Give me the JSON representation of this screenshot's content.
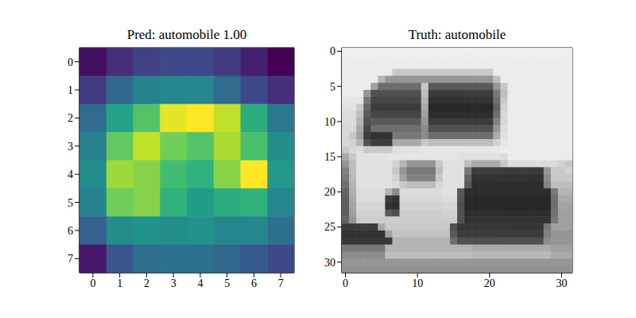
{
  "chart_data": [
    {
      "type": "heatmap",
      "title": "Pred: automobile 1.00",
      "xlim": [
        -0.5,
        7.5
      ],
      "ylim": [
        -0.5,
        7.5
      ],
      "xticks": [
        0,
        1,
        2,
        3,
        4,
        5,
        6,
        7
      ],
      "yticks": [
        0,
        1,
        2,
        3,
        4,
        5,
        6,
        7
      ],
      "cells": [
        [
          0.05,
          0.15,
          0.22,
          0.25,
          0.25,
          0.2,
          0.1,
          0.0
        ],
        [
          0.2,
          0.38,
          0.5,
          0.52,
          0.52,
          0.4,
          0.25,
          0.15
        ],
        [
          0.4,
          0.65,
          0.82,
          0.98,
          1.0,
          0.95,
          0.7,
          0.45
        ],
        [
          0.5,
          0.85,
          0.95,
          0.88,
          0.82,
          0.93,
          0.8,
          0.55
        ],
        [
          0.55,
          0.92,
          0.9,
          0.78,
          0.72,
          0.9,
          1.0,
          0.6
        ],
        [
          0.5,
          0.88,
          0.9,
          0.72,
          0.62,
          0.7,
          0.72,
          0.52
        ],
        [
          0.35,
          0.55,
          0.58,
          0.55,
          0.58,
          0.52,
          0.52,
          0.42
        ],
        [
          0.08,
          0.3,
          0.4,
          0.42,
          0.42,
          0.38,
          0.32,
          0.25
        ]
      ]
    },
    {
      "type": "image",
      "title": "Truth: automobile",
      "xlim": [
        -0.5,
        31.5
      ],
      "ylim": [
        -0.5,
        31.5
      ],
      "xticks": [
        0,
        10,
        20,
        30
      ],
      "yticks": [
        0,
        5,
        10,
        15,
        20,
        25,
        30
      ],
      "pixels": [
        [
          238,
          238,
          238,
          238,
          238,
          238,
          238,
          238,
          238,
          238,
          238,
          238,
          238,
          238,
          238,
          238,
          238,
          238,
          238,
          238,
          238,
          238,
          238,
          238,
          238,
          238,
          238,
          238,
          238,
          238,
          238,
          238
        ],
        [
          238,
          238,
          238,
          238,
          238,
          238,
          238,
          238,
          238,
          238,
          238,
          238,
          238,
          238,
          238,
          238,
          238,
          238,
          238,
          238,
          238,
          238,
          238,
          238,
          238,
          238,
          238,
          238,
          238,
          238,
          238,
          238
        ],
        [
          236,
          236,
          236,
          236,
          236,
          236,
          236,
          236,
          236,
          236,
          236,
          236,
          236,
          236,
          236,
          236,
          236,
          236,
          236,
          236,
          236,
          236,
          236,
          236,
          236,
          236,
          236,
          236,
          236,
          236,
          236,
          236
        ],
        [
          236,
          236,
          236,
          236,
          236,
          236,
          236,
          200,
          200,
          200,
          200,
          200,
          200,
          200,
          200,
          200,
          200,
          200,
          200,
          200,
          200,
          236,
          236,
          236,
          236,
          236,
          236,
          236,
          236,
          236,
          236,
          236
        ],
        [
          236,
          236,
          236,
          236,
          236,
          180,
          150,
          150,
          150,
          150,
          150,
          150,
          150,
          150,
          150,
          150,
          150,
          150,
          150,
          150,
          150,
          190,
          236,
          236,
          236,
          236,
          236,
          236,
          236,
          236,
          236,
          236
        ],
        [
          236,
          236,
          236,
          236,
          160,
          110,
          110,
          110,
          110,
          110,
          110,
          200,
          90,
          90,
          90,
          90,
          90,
          90,
          90,
          90,
          90,
          150,
          200,
          236,
          236,
          236,
          236,
          236,
          236,
          236,
          236,
          236
        ],
        [
          236,
          236,
          236,
          150,
          80,
          80,
          80,
          80,
          80,
          80,
          80,
          190,
          60,
          60,
          60,
          60,
          60,
          60,
          60,
          60,
          60,
          120,
          190,
          236,
          236,
          236,
          236,
          236,
          236,
          236,
          236,
          236
        ],
        [
          230,
          230,
          230,
          120,
          70,
          70,
          70,
          70,
          70,
          70,
          70,
          180,
          50,
          50,
          50,
          50,
          50,
          50,
          50,
          50,
          50,
          110,
          200,
          236,
          236,
          236,
          236,
          236,
          236,
          236,
          236,
          236
        ],
        [
          225,
          225,
          200,
          100,
          60,
          60,
          60,
          60,
          60,
          60,
          60,
          170,
          40,
          40,
          40,
          40,
          40,
          40,
          40,
          40,
          40,
          100,
          210,
          236,
          236,
          236,
          236,
          236,
          236,
          236,
          236,
          236
        ],
        [
          220,
          220,
          190,
          90,
          70,
          70,
          70,
          70,
          70,
          70,
          70,
          160,
          45,
          45,
          45,
          45,
          45,
          45,
          45,
          45,
          45,
          110,
          215,
          236,
          236,
          236,
          236,
          236,
          236,
          236,
          236,
          236
        ],
        [
          220,
          220,
          180,
          80,
          90,
          90,
          90,
          90,
          90,
          90,
          90,
          150,
          60,
          60,
          60,
          60,
          60,
          60,
          60,
          60,
          60,
          130,
          215,
          236,
          236,
          236,
          236,
          236,
          236,
          236,
          236,
          236
        ],
        [
          215,
          215,
          170,
          70,
          110,
          110,
          110,
          110,
          110,
          110,
          110,
          140,
          80,
          80,
          80,
          80,
          80,
          80,
          80,
          80,
          80,
          150,
          220,
          236,
          236,
          236,
          236,
          236,
          236,
          236,
          236,
          236
        ],
        [
          215,
          200,
          160,
          60,
          50,
          50,
          50,
          120,
          120,
          120,
          120,
          140,
          110,
          110,
          110,
          110,
          110,
          110,
          110,
          110,
          110,
          170,
          225,
          236,
          236,
          236,
          236,
          236,
          236,
          236,
          236,
          236
        ],
        [
          215,
          210,
          180,
          80,
          60,
          60,
          60,
          170,
          170,
          170,
          170,
          200,
          190,
          190,
          190,
          190,
          190,
          190,
          190,
          190,
          190,
          210,
          230,
          236,
          236,
          236,
          236,
          236,
          236,
          236,
          236,
          236
        ],
        [
          200,
          215,
          220,
          200,
          200,
          200,
          200,
          225,
          225,
          225,
          225,
          230,
          230,
          230,
          230,
          230,
          230,
          230,
          230,
          230,
          230,
          232,
          236,
          236,
          236,
          236,
          236,
          236,
          236,
          236,
          236,
          236
        ],
        [
          170,
          200,
          225,
          225,
          225,
          225,
          230,
          230,
          230,
          230,
          230,
          230,
          230,
          230,
          230,
          230,
          225,
          225,
          225,
          225,
          225,
          225,
          220,
          236,
          236,
          236,
          236,
          236,
          236,
          236,
          236,
          236
        ],
        [
          150,
          190,
          225,
          225,
          225,
          225,
          225,
          210,
          180,
          150,
          150,
          150,
          150,
          200,
          225,
          225,
          225,
          190,
          170,
          170,
          170,
          170,
          200,
          220,
          220,
          220,
          220,
          220,
          220,
          220,
          210,
          200
        ],
        [
          130,
          190,
          225,
          225,
          225,
          225,
          225,
          200,
          150,
          120,
          120,
          120,
          120,
          190,
          225,
          225,
          225,
          120,
          60,
          60,
          60,
          60,
          60,
          60,
          60,
          60,
          60,
          60,
          150,
          200,
          200,
          210
        ],
        [
          120,
          185,
          225,
          225,
          225,
          225,
          225,
          210,
          160,
          130,
          130,
          130,
          130,
          200,
          225,
          225,
          225,
          100,
          50,
          50,
          50,
          50,
          50,
          50,
          50,
          50,
          50,
          50,
          140,
          200,
          200,
          200
        ],
        [
          110,
          180,
          225,
          225,
          225,
          225,
          225,
          220,
          200,
          190,
          190,
          190,
          190,
          215,
          225,
          225,
          225,
          90,
          45,
          45,
          45,
          45,
          45,
          45,
          45,
          45,
          45,
          45,
          130,
          190,
          190,
          190
        ],
        [
          100,
          175,
          220,
          220,
          220,
          220,
          180,
          140,
          220,
          220,
          220,
          220,
          220,
          220,
          225,
          225,
          90,
          45,
          45,
          45,
          45,
          45,
          45,
          45,
          45,
          45,
          45,
          45,
          45,
          120,
          180,
          180
        ],
        [
          95,
          170,
          220,
          220,
          220,
          220,
          60,
          50,
          215,
          215,
          215,
          215,
          215,
          215,
          220,
          220,
          85,
          40,
          40,
          40,
          40,
          40,
          40,
          40,
          40,
          40,
          40,
          40,
          40,
          110,
          170,
          170
        ],
        [
          95,
          165,
          215,
          215,
          215,
          215,
          50,
          45,
          210,
          210,
          210,
          210,
          210,
          210,
          215,
          215,
          80,
          40,
          40,
          40,
          40,
          40,
          40,
          40,
          40,
          40,
          40,
          40,
          40,
          110,
          165,
          165
        ],
        [
          95,
          160,
          210,
          210,
          210,
          210,
          90,
          80,
          205,
          205,
          205,
          205,
          205,
          205,
          210,
          210,
          80,
          45,
          45,
          45,
          45,
          45,
          45,
          45,
          45,
          45,
          45,
          45,
          45,
          115,
          160,
          160
        ],
        [
          100,
          150,
          205,
          205,
          205,
          205,
          205,
          205,
          205,
          205,
          205,
          205,
          205,
          205,
          205,
          205,
          80,
          50,
          50,
          50,
          50,
          50,
          50,
          50,
          50,
          50,
          50,
          50,
          50,
          120,
          160,
          160
        ],
        [
          60,
          60,
          60,
          60,
          60,
          170,
          200,
          200,
          200,
          200,
          200,
          200,
          200,
          200,
          200,
          80,
          55,
          55,
          55,
          55,
          55,
          55,
          55,
          55,
          55,
          55,
          55,
          55,
          120,
          160,
          160,
          160
        ],
        [
          50,
          50,
          50,
          50,
          50,
          50,
          160,
          195,
          195,
          195,
          195,
          195,
          195,
          195,
          195,
          90,
          60,
          60,
          60,
          60,
          60,
          60,
          60,
          60,
          60,
          60,
          60,
          60,
          130,
          150,
          150,
          150
        ],
        [
          55,
          55,
          55,
          55,
          55,
          55,
          55,
          180,
          180,
          180,
          180,
          180,
          180,
          180,
          180,
          110,
          80,
          80,
          80,
          80,
          80,
          80,
          80,
          80,
          80,
          80,
          80,
          80,
          140,
          150,
          150,
          150
        ],
        [
          120,
          120,
          120,
          120,
          120,
          120,
          180,
          180,
          180,
          180,
          180,
          180,
          180,
          180,
          180,
          180,
          180,
          180,
          170,
          170,
          170,
          170,
          170,
          170,
          170,
          170,
          170,
          170,
          170,
          160,
          160,
          160
        ],
        [
          140,
          140,
          140,
          140,
          140,
          140,
          190,
          190,
          190,
          190,
          190,
          190,
          190,
          190,
          190,
          190,
          190,
          190,
          185,
          185,
          185,
          185,
          185,
          185,
          185,
          185,
          185,
          185,
          185,
          170,
          170,
          170
        ],
        [
          150,
          150,
          150,
          150,
          150,
          150,
          150,
          150,
          150,
          150,
          150,
          150,
          150,
          150,
          150,
          150,
          150,
          150,
          150,
          150,
          150,
          150,
          150,
          150,
          150,
          150,
          150,
          150,
          150,
          150,
          150,
          150
        ],
        [
          145,
          145,
          145,
          145,
          145,
          145,
          145,
          145,
          145,
          145,
          145,
          145,
          145,
          145,
          145,
          145,
          145,
          145,
          145,
          145,
          145,
          145,
          145,
          145,
          145,
          145,
          145,
          145,
          145,
          145,
          145,
          145
        ]
      ]
    }
  ]
}
